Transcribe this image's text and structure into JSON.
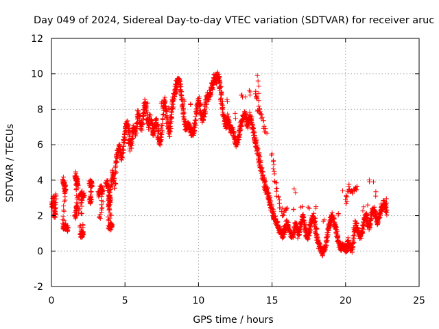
{
  "chart_data": {
    "type": "scatter",
    "title": "Day 049 of 2024, Sidereal Day-to-day VTEC variation (SDTVAR) for receiver aruc",
    "xlabel": "GPS time / hours",
    "ylabel": "SDTVAR / TECUs",
    "xlim": [
      0,
      25
    ],
    "ylim": [
      -2,
      12
    ],
    "xticks": [
      0,
      5,
      10,
      15,
      20,
      25
    ],
    "yticks": [
      -2,
      0,
      2,
      4,
      6,
      8,
      10,
      12
    ],
    "xtick_labels": [
      "0",
      "5",
      "10",
      "15",
      "20",
      "25"
    ],
    "ytick_labels": [
      "-2",
      "0",
      "2",
      "4",
      "6",
      "8",
      "10",
      "12"
    ],
    "grid": true,
    "marker": "+",
    "series": [
      {
        "name": "SDTVAR",
        "color": "#ff0000",
        "trace": [
          [
            0.0,
            2.6
          ],
          [
            0.1,
            2.5
          ],
          [
            0.15,
            3.1
          ],
          [
            0.2,
            2.1
          ],
          [
            0.25,
            2.0
          ],
          [
            0.3,
            3.1
          ],
          [
            0.8,
            4.0
          ],
          [
            0.85,
            3.8
          ],
          [
            0.9,
            3.6
          ],
          [
            0.95,
            3.4
          ],
          [
            0.8,
            1.4
          ],
          [
            0.9,
            1.3
          ],
          [
            1.0,
            1.4
          ],
          [
            1.1,
            1.2
          ],
          [
            1.6,
            2.0
          ],
          [
            1.7,
            2.3
          ],
          [
            1.75,
            2.6
          ],
          [
            1.6,
            4.3
          ],
          [
            1.7,
            4.1
          ],
          [
            1.75,
            3.9
          ],
          [
            1.8,
            3.7
          ],
          [
            2.0,
            0.8
          ],
          [
            2.05,
            1.0
          ],
          [
            2.1,
            1.1
          ],
          [
            2.15,
            0.9
          ],
          [
            2.0,
            3.3
          ],
          [
            2.1,
            3.0
          ],
          [
            2.2,
            3.2
          ],
          [
            2.6,
            3.8
          ],
          [
            2.7,
            3.9
          ],
          [
            2.75,
            3.7
          ],
          [
            2.6,
            2.8
          ],
          [
            2.7,
            3.0
          ],
          [
            3.2,
            3.2
          ],
          [
            3.3,
            3.4
          ],
          [
            3.4,
            3.6
          ],
          [
            3.5,
            3.3
          ],
          [
            3.3,
            1.8
          ],
          [
            3.7,
            3.7
          ],
          [
            3.8,
            3.9
          ],
          [
            3.9,
            3.5
          ],
          [
            3.9,
            1.3
          ],
          [
            4.0,
            1.4
          ],
          [
            4.05,
            1.5
          ],
          [
            4.1,
            1.3
          ],
          [
            3.9,
            2.6
          ],
          [
            4.0,
            3.0
          ],
          [
            3.9,
            3.1
          ],
          [
            4.1,
            3.8
          ],
          [
            4.2,
            4.5
          ],
          [
            4.3,
            3.6
          ],
          [
            4.4,
            5.0
          ],
          [
            4.5,
            5.6
          ],
          [
            4.6,
            5.9
          ],
          [
            4.7,
            5.5
          ],
          [
            4.8,
            5.2
          ],
          [
            4.9,
            6.0
          ],
          [
            5.0,
            6.6
          ],
          [
            5.1,
            7.3
          ],
          [
            5.2,
            7.0
          ],
          [
            5.3,
            6.2
          ],
          [
            5.4,
            5.8
          ],
          [
            5.5,
            6.5
          ],
          [
            5.6,
            7.0
          ],
          [
            5.7,
            6.6
          ],
          [
            5.8,
            7.2
          ],
          [
            5.9,
            7.8
          ],
          [
            6.0,
            7.4
          ],
          [
            6.1,
            6.9
          ],
          [
            6.2,
            7.3
          ],
          [
            6.3,
            8.1
          ],
          [
            6.4,
            8.4
          ],
          [
            6.5,
            7.5
          ],
          [
            6.6,
            7.0
          ],
          [
            6.7,
            7.6
          ],
          [
            6.8,
            7.2
          ],
          [
            6.9,
            6.6
          ],
          [
            7.0,
            6.9
          ],
          [
            7.1,
            7.4
          ],
          [
            7.2,
            6.9
          ],
          [
            7.3,
            6.2
          ],
          [
            7.4,
            6.1
          ],
          [
            7.5,
            6.8
          ],
          [
            7.6,
            8.0
          ],
          [
            7.7,
            8.5
          ],
          [
            7.8,
            7.8
          ],
          [
            7.9,
            7.2
          ],
          [
            8.0,
            6.6
          ],
          [
            8.1,
            7.2
          ],
          [
            8.2,
            8.0
          ],
          [
            8.3,
            8.6
          ],
          [
            8.4,
            9.1
          ],
          [
            8.5,
            9.4
          ],
          [
            8.6,
            9.7
          ],
          [
            8.7,
            9.5
          ],
          [
            8.8,
            9.0
          ],
          [
            8.9,
            8.3
          ],
          [
            9.0,
            7.6
          ],
          [
            9.1,
            7.0
          ],
          [
            9.2,
            6.9
          ],
          [
            9.3,
            7.2
          ],
          [
            9.4,
            7.0
          ],
          [
            9.5,
            6.7
          ],
          [
            9.6,
            6.6
          ],
          [
            9.7,
            6.9
          ],
          [
            9.8,
            7.5
          ],
          [
            9.9,
            8.2
          ],
          [
            10.0,
            8.5
          ],
          [
            10.1,
            8.1
          ],
          [
            10.2,
            7.6
          ],
          [
            10.3,
            7.4
          ],
          [
            10.4,
            7.8
          ],
          [
            10.5,
            8.4
          ],
          [
            10.6,
            8.8
          ],
          [
            10.7,
            8.6
          ],
          [
            10.8,
            8.9
          ],
          [
            10.9,
            9.3
          ],
          [
            11.0,
            9.6
          ],
          [
            11.1,
            9.8
          ],
          [
            11.2,
            9.5
          ],
          [
            11.3,
            10.0
          ],
          [
            11.4,
            9.6
          ],
          [
            11.5,
            9.0
          ],
          [
            11.6,
            8.3
          ],
          [
            11.7,
            7.7
          ],
          [
            11.8,
            7.3
          ],
          [
            11.9,
            7.0
          ],
          [
            12.0,
            7.6
          ],
          [
            12.1,
            7.2
          ],
          [
            12.2,
            6.8
          ],
          [
            12.3,
            6.9
          ],
          [
            12.4,
            6.5
          ],
          [
            12.5,
            6.2
          ],
          [
            12.6,
            6.0
          ],
          [
            12.7,
            6.3
          ],
          [
            12.8,
            6.8
          ],
          [
            12.9,
            7.2
          ],
          [
            13.0,
            7.5
          ],
          [
            13.1,
            7.8
          ],
          [
            13.2,
            7.5
          ],
          [
            13.3,
            7.1
          ],
          [
            13.4,
            7.3
          ],
          [
            13.5,
            7.7
          ],
          [
            13.6,
            7.4
          ],
          [
            13.7,
            6.9
          ],
          [
            13.8,
            6.5
          ],
          [
            13.9,
            6.1
          ],
          [
            14.0,
            5.7
          ],
          [
            14.1,
            5.3
          ],
          [
            14.2,
            4.9
          ],
          [
            14.3,
            4.5
          ],
          [
            14.4,
            4.1
          ],
          [
            14.5,
            3.7
          ],
          [
            14.6,
            3.5
          ],
          [
            14.7,
            3.3
          ],
          [
            14.8,
            3.0
          ],
          [
            14.9,
            2.6
          ],
          [
            15.0,
            2.3
          ],
          [
            15.1,
            2.0
          ],
          [
            15.2,
            1.8
          ],
          [
            15.3,
            1.6
          ],
          [
            15.4,
            1.5
          ],
          [
            15.5,
            1.2
          ],
          [
            15.6,
            1.0
          ],
          [
            15.7,
            0.9
          ],
          [
            15.8,
            1.0
          ],
          [
            15.9,
            1.3
          ],
          [
            16.0,
            1.6
          ],
          [
            16.1,
            1.4
          ],
          [
            16.2,
            1.1
          ],
          [
            16.3,
            0.9
          ],
          [
            16.4,
            0.9
          ],
          [
            16.5,
            1.2
          ],
          [
            16.6,
            1.5
          ],
          [
            16.7,
            1.3
          ],
          [
            16.8,
            0.9
          ],
          [
            16.9,
            1.2
          ],
          [
            17.0,
            1.7
          ],
          [
            17.1,
            2.0
          ],
          [
            17.2,
            1.6
          ],
          [
            17.3,
            1.1
          ],
          [
            17.4,
            0.8
          ],
          [
            17.5,
            1.0
          ],
          [
            17.6,
            1.4
          ],
          [
            17.7,
            1.8
          ],
          [
            17.8,
            2.0
          ],
          [
            17.9,
            1.6
          ],
          [
            18.0,
            1.1
          ],
          [
            18.1,
            0.6
          ],
          [
            18.2,
            0.3
          ],
          [
            18.3,
            0.1
          ],
          [
            18.4,
            -0.1
          ],
          [
            18.5,
            0.0
          ],
          [
            18.6,
            0.2
          ],
          [
            18.7,
            0.6
          ],
          [
            18.8,
            1.1
          ],
          [
            18.9,
            1.5
          ],
          [
            19.0,
            1.8
          ],
          [
            19.1,
            2.0
          ],
          [
            19.2,
            1.7
          ],
          [
            19.3,
            1.4
          ],
          [
            19.4,
            1.0
          ],
          [
            19.5,
            0.6
          ],
          [
            19.6,
            0.3
          ],
          [
            19.7,
            0.2
          ],
          [
            19.8,
            0.3
          ],
          [
            19.9,
            0.2
          ],
          [
            20.0,
            0.1
          ],
          [
            20.1,
            0.2
          ],
          [
            20.2,
            0.6
          ],
          [
            20.3,
            0.2
          ],
          [
            20.4,
            0.1
          ],
          [
            20.5,
            0.4
          ],
          [
            20.6,
            1.2
          ],
          [
            20.7,
            1.6
          ],
          [
            20.8,
            1.3
          ],
          [
            20.9,
            1.0
          ],
          [
            21.0,
            0.8
          ],
          [
            21.1,
            1.0
          ],
          [
            21.2,
            1.4
          ],
          [
            21.3,
            1.9
          ],
          [
            21.4,
            2.0
          ],
          [
            21.5,
            1.6
          ],
          [
            21.6,
            1.3
          ],
          [
            21.7,
            1.7
          ],
          [
            21.8,
            2.1
          ],
          [
            21.9,
            2.4
          ],
          [
            22.0,
            2.1
          ],
          [
            22.1,
            1.8
          ],
          [
            22.2,
            1.6
          ],
          [
            22.3,
            1.9
          ],
          [
            22.4,
            2.3
          ],
          [
            22.5,
            2.5
          ],
          [
            22.6,
            2.7
          ],
          [
            22.7,
            2.6
          ],
          [
            22.8,
            2.2
          ]
        ],
        "upper_trace": [
          [
            6.5,
            8.3
          ],
          [
            7.5,
            8.5
          ],
          [
            8.0,
            8.0
          ],
          [
            8.5,
            8.9
          ],
          [
            9.0,
            8.5
          ],
          [
            9.5,
            8.2
          ],
          [
            10.0,
            8.6
          ],
          [
            10.5,
            7.9
          ],
          [
            11.0,
            9.2
          ],
          [
            11.5,
            9.4
          ],
          [
            12.0,
            8.5
          ],
          [
            12.5,
            7.6
          ],
          [
            13.0,
            8.8
          ],
          [
            13.5,
            8.9
          ],
          [
            13.9,
            9.0
          ],
          [
            14.1,
            8.1
          ],
          [
            14.3,
            7.5
          ],
          [
            14.6,
            6.7
          ],
          [
            15.0,
            5.5
          ],
          [
            15.2,
            4.0
          ],
          [
            15.4,
            3.0
          ],
          [
            15.7,
            2.1
          ],
          [
            16.0,
            2.5
          ],
          [
            16.5,
            2.2
          ],
          [
            17.0,
            2.6
          ],
          [
            17.5,
            2.3
          ],
          [
            18.0,
            2.4
          ],
          [
            18.5,
            1.8
          ],
          [
            19.0,
            1.5
          ],
          [
            19.5,
            2.0
          ],
          [
            20.0,
            2.8
          ],
          [
            20.2,
            3.6
          ],
          [
            20.5,
            3.4
          ],
          [
            20.8,
            3.5
          ],
          [
            21.2,
            2.4
          ],
          [
            21.6,
            3.9
          ],
          [
            22.0,
            3.2
          ],
          [
            22.4,
            2.6
          ],
          [
            22.8,
            2.8
          ]
        ],
        "cluster_spread": 0.35,
        "repeats": 3,
        "outliers": [
          [
            14.0,
            9.9
          ],
          [
            14.05,
            9.6
          ],
          [
            14.1,
            9.3
          ],
          [
            14.1,
            8.9
          ],
          [
            13.5,
            8.8
          ],
          [
            12.9,
            8.8
          ],
          [
            13.2,
            8.7
          ],
          [
            16.6,
            3.3
          ],
          [
            16.5,
            3.5
          ],
          [
            20.1,
            2.8
          ],
          [
            15.5,
            2.7
          ],
          [
            14.0,
            7.9
          ],
          [
            13.8,
            6.2
          ],
          [
            19.8,
            3.4
          ],
          [
            20.7,
            3.5
          ],
          [
            21.9,
            3.9
          ],
          [
            21.5,
            2.6
          ]
        ]
      }
    ]
  }
}
